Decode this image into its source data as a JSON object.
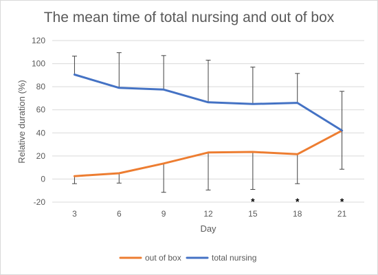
{
  "chart_data": {
    "type": "line",
    "title": "The mean time of total nursing and out of box",
    "xlabel": "Day",
    "ylabel": "Relative duration (%)",
    "x": [
      3,
      6,
      9,
      12,
      15,
      18,
      21
    ],
    "ylim": [
      -20,
      120
    ],
    "yticks": [
      -20,
      0,
      20,
      40,
      60,
      80,
      100,
      120
    ],
    "grid": true,
    "legend_position": "bottom",
    "series": [
      {
        "name": "out of box",
        "color": "#ed7d31",
        "values": [
          2.5,
          5,
          13.5,
          23,
          23.5,
          21.5,
          42
        ],
        "error_low": [
          -4,
          -3.5,
          -11.5,
          -9.5,
          -9,
          -4,
          8.5
        ]
      },
      {
        "name": "total nursing",
        "color": "#4472c4",
        "values": [
          90.5,
          79,
          77.5,
          66.5,
          65,
          66,
          42
        ],
        "error_high": [
          106.5,
          109.5,
          107,
          103,
          97,
          91.5,
          76
        ]
      }
    ],
    "significance_markers": [
      {
        "x": 15,
        "text": "*"
      },
      {
        "x": 18,
        "text": "*"
      },
      {
        "x": 21,
        "text": "*"
      }
    ]
  }
}
